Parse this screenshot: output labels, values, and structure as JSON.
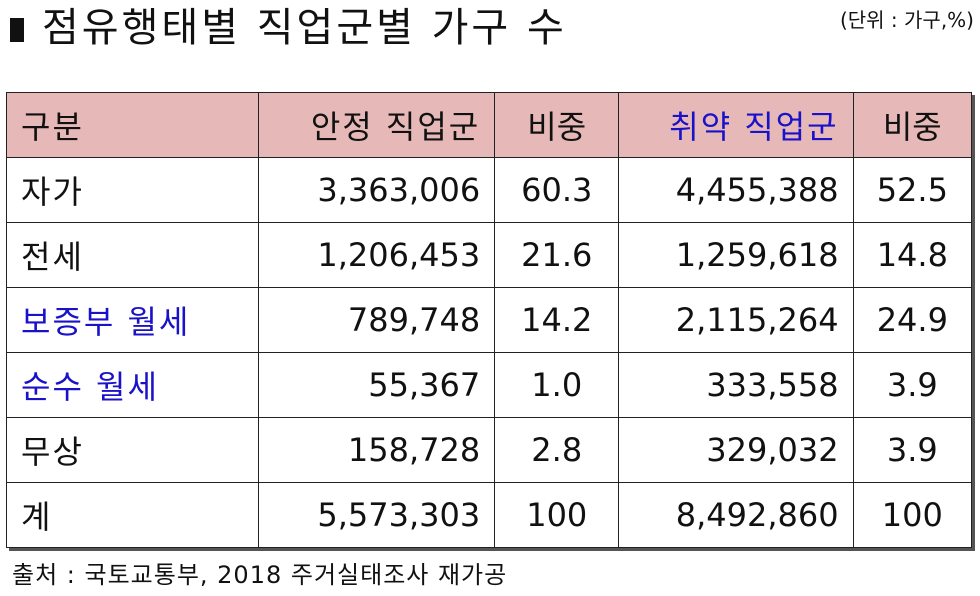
{
  "title": "점유행태별 직업군별 가구 수",
  "unit": "(단위 : 가구,%)",
  "colors": {
    "header_bg": "#e6b9b8",
    "accent_blue": "#1a12c8",
    "text": "#111111"
  },
  "table": {
    "headers": [
      "구분",
      "안정 직업군",
      "비중",
      "취약 직업군",
      "비중"
    ],
    "rows": [
      {
        "label": "자가",
        "stable": "3,363,006",
        "stable_ratio": "60.3",
        "vulnerable": "4,455,388",
        "vulnerable_ratio": "52.5"
      },
      {
        "label": "전세",
        "stable": "1,206,453",
        "stable_ratio": "21.6",
        "vulnerable": "1,259,618",
        "vulnerable_ratio": "14.8"
      },
      {
        "label": "보증부 월세",
        "stable": "789,748",
        "stable_ratio": "14.2",
        "vulnerable": "2,115,264",
        "vulnerable_ratio": "24.9"
      },
      {
        "label": "순수 월세",
        "stable": "55,367",
        "stable_ratio": "1.0",
        "vulnerable": "333,558",
        "vulnerable_ratio": "3.9"
      },
      {
        "label": "무상",
        "stable": "158,728",
        "stable_ratio": "2.8",
        "vulnerable": "329,032",
        "vulnerable_ratio": "3.9"
      },
      {
        "label": "계",
        "stable": "5,573,303",
        "stable_ratio": "100",
        "vulnerable": "8,492,860",
        "vulnerable_ratio": "100"
      }
    ]
  },
  "source": "출처 : 국토교통부, 2018 주거실태조사 재가공"
}
